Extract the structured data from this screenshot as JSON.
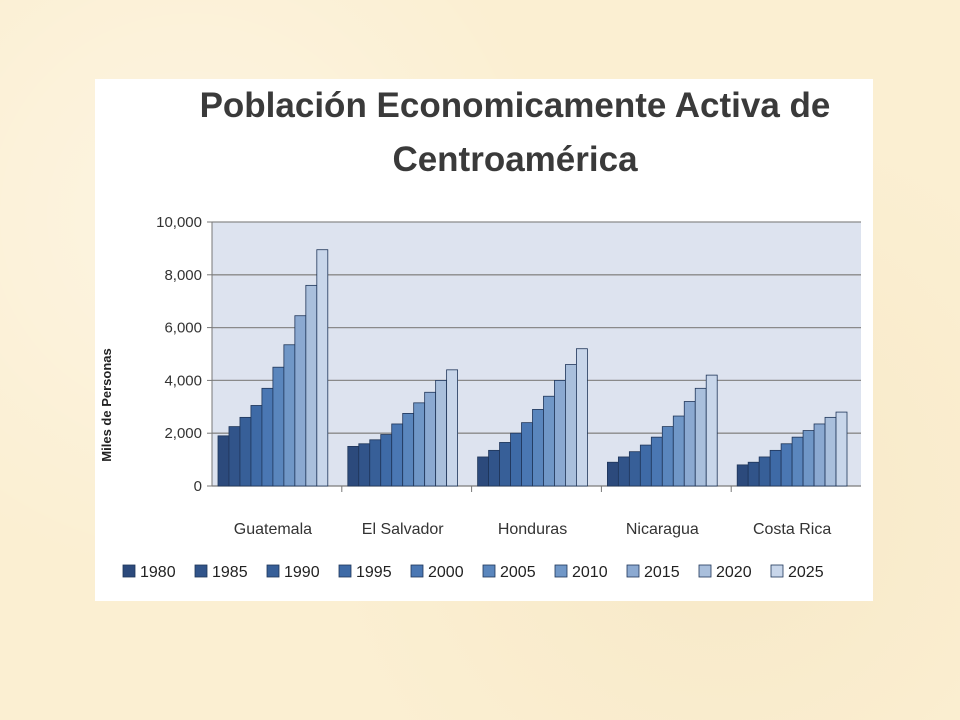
{
  "chart_data": {
    "type": "bar",
    "title": "Población Economicamente Activa de Centroamérica",
    "title_lines": [
      "Población Economicamente Activa de",
      "Centroamérica"
    ],
    "ylabel": "Miles de Personas",
    "xlabel": "",
    "ylim": [
      0,
      10000
    ],
    "yticks": [
      0,
      2000,
      4000,
      6000,
      8000,
      10000
    ],
    "ytick_labels": [
      "0",
      "2,000",
      "4,000",
      "6,000",
      "8,000",
      "10,000"
    ],
    "grid": true,
    "legend_position": "bottom",
    "categories": [
      "Guatemala",
      "El Salvador",
      "Honduras",
      "Nicaragua",
      "Costa Rica"
    ],
    "series": [
      {
        "name": "1980",
        "color": "#2c4a7c",
        "values": [
          1900,
          1500,
          1100,
          900,
          800
        ]
      },
      {
        "name": "1985",
        "color": "#31548a",
        "values": [
          2250,
          1600,
          1350,
          1100,
          900
        ]
      },
      {
        "name": "1990",
        "color": "#375f98",
        "values": [
          2600,
          1750,
          1650,
          1300,
          1100
        ]
      },
      {
        "name": "1995",
        "color": "#3e6aa6",
        "values": [
          3050,
          1950,
          2000,
          1550,
          1350
        ]
      },
      {
        "name": "2000",
        "color": "#4a77b3",
        "values": [
          3700,
          2350,
          2400,
          1850,
          1600
        ]
      },
      {
        "name": "2005",
        "color": "#5a86bd",
        "values": [
          4500,
          2750,
          2900,
          2250,
          1850
        ]
      },
      {
        "name": "2010",
        "color": "#7097c7",
        "values": [
          5350,
          3150,
          3400,
          2650,
          2100
        ]
      },
      {
        "name": "2015",
        "color": "#8ba9d1",
        "values": [
          6450,
          3550,
          4000,
          3200,
          2350
        ]
      },
      {
        "name": "2020",
        "color": "#a9bfdc",
        "values": [
          7600,
          4000,
          4600,
          3700,
          2600
        ]
      },
      {
        "name": "2025",
        "color": "#c8d6ea",
        "values": [
          8950,
          4400,
          5200,
          4200,
          2800
        ]
      }
    ]
  }
}
